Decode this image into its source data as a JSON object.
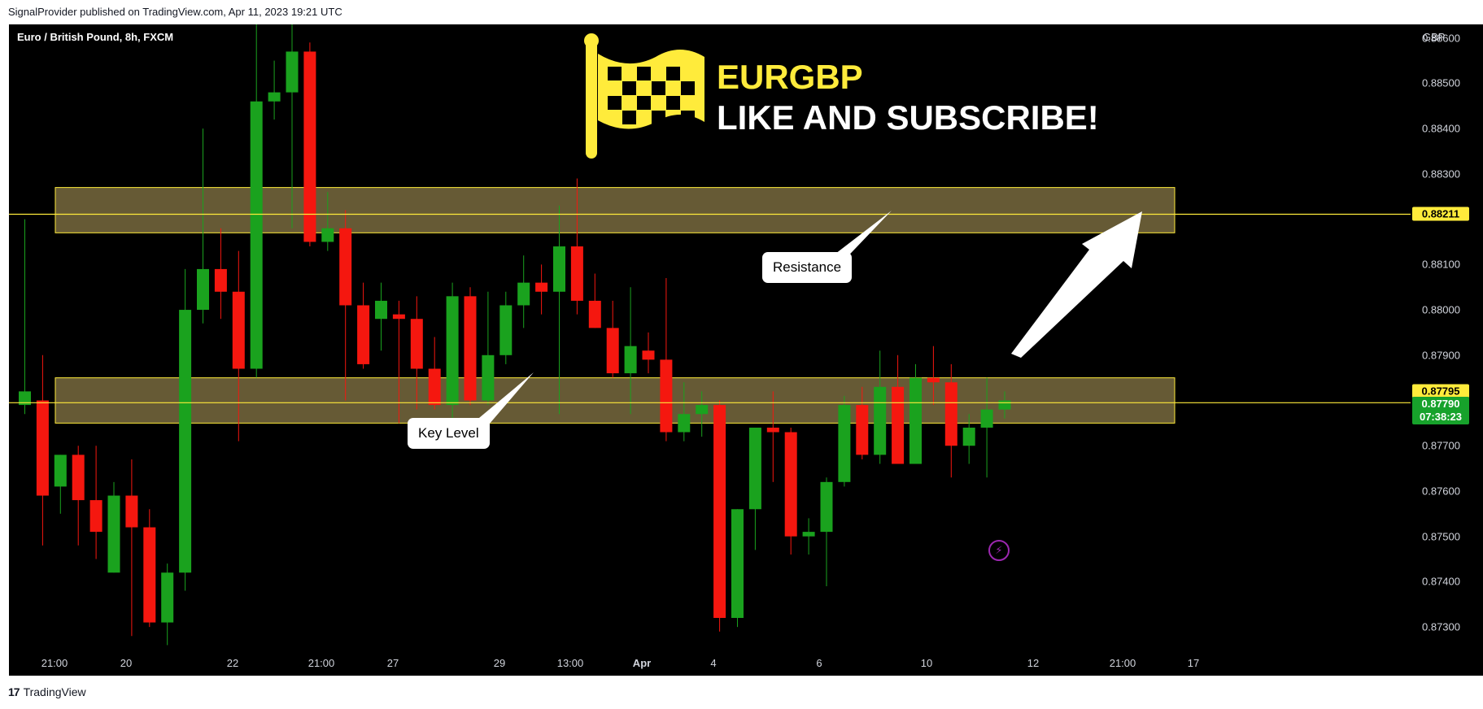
{
  "caption": "SignalProvider published on TradingView.com, Apr 11, 2023 19:21 UTC",
  "symbol_label": "Euro / British Pound, 8h, FXCM",
  "currency": "GBP",
  "promo": {
    "ticker": "EURGBP",
    "slogan": "LIKE AND SUBSCRIBE!"
  },
  "annotations": {
    "resistance": "Resistance",
    "key_level": "Key Level"
  },
  "price_tags": {
    "resistance": "0.88211",
    "key": "0.87795",
    "last": "0.87790",
    "countdown": "07:38:23"
  },
  "footer": {
    "brand": "TradingView",
    "mark": "17"
  },
  "colors": {
    "up": "#1aa21e",
    "down": "#f5170f",
    "zone": "#6b5f38",
    "zone_border": "#ffeb3b",
    "line": "#ffeb3b"
  },
  "chart_data": {
    "type": "candlestick",
    "y_ticks": [
      "0.88600",
      "0.88500",
      "0.88400",
      "0.88300",
      "0.88100",
      "0.88000",
      "0.87900",
      "0.87700",
      "0.87600",
      "0.87500",
      "0.87400",
      "0.87300"
    ],
    "x_ticks": [
      "21:00",
      "20",
      "22",
      "21:00",
      "27",
      "29",
      "13:00",
      "Apr",
      "4",
      "6",
      "10",
      "12",
      "21:00",
      "17"
    ],
    "ylim": [
      0.8725,
      0.8863
    ],
    "resistance_zone": [
      0.8817,
      0.8827
    ],
    "key_zone": [
      0.8775,
      0.8785
    ],
    "resistance_line": 0.88211,
    "key_line": 0.87795,
    "candles": [
      {
        "o": 0.8779,
        "h": 0.882,
        "l": 0.8777,
        "c": 0.8782
      },
      {
        "o": 0.878,
        "h": 0.879,
        "l": 0.8748,
        "c": 0.8759
      },
      {
        "o": 0.8761,
        "h": 0.8768,
        "l": 0.8755,
        "c": 0.8768
      },
      {
        "o": 0.8768,
        "h": 0.877,
        "l": 0.8748,
        "c": 0.8758
      },
      {
        "o": 0.8758,
        "h": 0.877,
        "l": 0.8745,
        "c": 0.8751
      },
      {
        "o": 0.8742,
        "h": 0.8762,
        "l": 0.8742,
        "c": 0.8759
      },
      {
        "o": 0.8759,
        "h": 0.8767,
        "l": 0.8728,
        "c": 0.8752
      },
      {
        "o": 0.8752,
        "h": 0.8756,
        "l": 0.873,
        "c": 0.8731
      },
      {
        "o": 0.8731,
        "h": 0.8744,
        "l": 0.8726,
        "c": 0.8742
      },
      {
        "o": 0.8742,
        "h": 0.8809,
        "l": 0.8738,
        "c": 0.88
      },
      {
        "o": 0.88,
        "h": 0.884,
        "l": 0.8797,
        "c": 0.8809
      },
      {
        "o": 0.8809,
        "h": 0.8818,
        "l": 0.8798,
        "c": 0.8804
      },
      {
        "o": 0.8804,
        "h": 0.8813,
        "l": 0.8771,
        "c": 0.8787
      },
      {
        "o": 0.8787,
        "h": 0.8865,
        "l": 0.8785,
        "c": 0.8846
      },
      {
        "o": 0.8846,
        "h": 0.8855,
        "l": 0.8842,
        "c": 0.8848
      },
      {
        "o": 0.8848,
        "h": 0.8872,
        "l": 0.8818,
        "c": 0.8857
      },
      {
        "o": 0.8857,
        "h": 0.8859,
        "l": 0.8814,
        "c": 0.8815
      },
      {
        "o": 0.8815,
        "h": 0.8826,
        "l": 0.8813,
        "c": 0.8818
      },
      {
        "o": 0.8818,
        "h": 0.8822,
        "l": 0.878,
        "c": 0.8801
      },
      {
        "o": 0.8801,
        "h": 0.8806,
        "l": 0.8787,
        "c": 0.8788
      },
      {
        "o": 0.8798,
        "h": 0.8806,
        "l": 0.8791,
        "c": 0.8802
      },
      {
        "o": 0.8799,
        "h": 0.8802,
        "l": 0.8775,
        "c": 0.8798
      },
      {
        "o": 0.8798,
        "h": 0.8803,
        "l": 0.8778,
        "c": 0.8787
      },
      {
        "o": 0.8787,
        "h": 0.8794,
        "l": 0.8778,
        "c": 0.8779
      },
      {
        "o": 0.8779,
        "h": 0.8806,
        "l": 0.8771,
        "c": 0.8803
      },
      {
        "o": 0.8803,
        "h": 0.8805,
        "l": 0.8779,
        "c": 0.878
      },
      {
        "o": 0.878,
        "h": 0.8804,
        "l": 0.8779,
        "c": 0.879
      },
      {
        "o": 0.879,
        "h": 0.8804,
        "l": 0.8788,
        "c": 0.8801
      },
      {
        "o": 0.8801,
        "h": 0.8812,
        "l": 0.8796,
        "c": 0.8806
      },
      {
        "o": 0.8806,
        "h": 0.881,
        "l": 0.8799,
        "c": 0.8804
      },
      {
        "o": 0.8804,
        "h": 0.8823,
        "l": 0.8777,
        "c": 0.8814
      },
      {
        "o": 0.8814,
        "h": 0.8829,
        "l": 0.8799,
        "c": 0.8802
      },
      {
        "o": 0.8802,
        "h": 0.8808,
        "l": 0.8796,
        "c": 0.8796
      },
      {
        "o": 0.8796,
        "h": 0.8802,
        "l": 0.8785,
        "c": 0.8786
      },
      {
        "o": 0.8786,
        "h": 0.8805,
        "l": 0.8777,
        "c": 0.8792
      },
      {
        "o": 0.8791,
        "h": 0.8795,
        "l": 0.8786,
        "c": 0.8789
      },
      {
        "o": 0.8789,
        "h": 0.8807,
        "l": 0.8771,
        "c": 0.8773
      },
      {
        "o": 0.8773,
        "h": 0.8784,
        "l": 0.8771,
        "c": 0.8777
      },
      {
        "o": 0.8777,
        "h": 0.8782,
        "l": 0.8772,
        "c": 0.8779
      },
      {
        "o": 0.8779,
        "h": 0.878,
        "l": 0.8729,
        "c": 0.8732
      },
      {
        "o": 0.8732,
        "h": 0.8756,
        "l": 0.873,
        "c": 0.8756
      },
      {
        "o": 0.8756,
        "h": 0.8774,
        "l": 0.8747,
        "c": 0.8774
      },
      {
        "o": 0.8774,
        "h": 0.8782,
        "l": 0.8762,
        "c": 0.8773
      },
      {
        "o": 0.8773,
        "h": 0.8774,
        "l": 0.8746,
        "c": 0.875
      },
      {
        "o": 0.875,
        "h": 0.8754,
        "l": 0.8746,
        "c": 0.8751
      },
      {
        "o": 0.8751,
        "h": 0.8763,
        "l": 0.8739,
        "c": 0.8762
      },
      {
        "o": 0.8762,
        "h": 0.8781,
        "l": 0.8761,
        "c": 0.8779
      },
      {
        "o": 0.8779,
        "h": 0.8783,
        "l": 0.8767,
        "c": 0.8768
      },
      {
        "o": 0.8768,
        "h": 0.8791,
        "l": 0.8766,
        "c": 0.8783
      },
      {
        "o": 0.8783,
        "h": 0.879,
        "l": 0.8766,
        "c": 0.8766
      },
      {
        "o": 0.8766,
        "h": 0.8788,
        "l": 0.8766,
        "c": 0.8785
      },
      {
        "o": 0.8785,
        "h": 0.8792,
        "l": 0.8779,
        "c": 0.8784
      },
      {
        "o": 0.8784,
        "h": 0.8788,
        "l": 0.8763,
        "c": 0.877
      },
      {
        "o": 0.877,
        "h": 0.8777,
        "l": 0.8766,
        "c": 0.8774
      },
      {
        "o": 0.8774,
        "h": 0.8785,
        "l": 0.8763,
        "c": 0.8778
      },
      {
        "o": 0.8778,
        "h": 0.8782,
        "l": 0.8776,
        "c": 0.878
      }
    ]
  }
}
